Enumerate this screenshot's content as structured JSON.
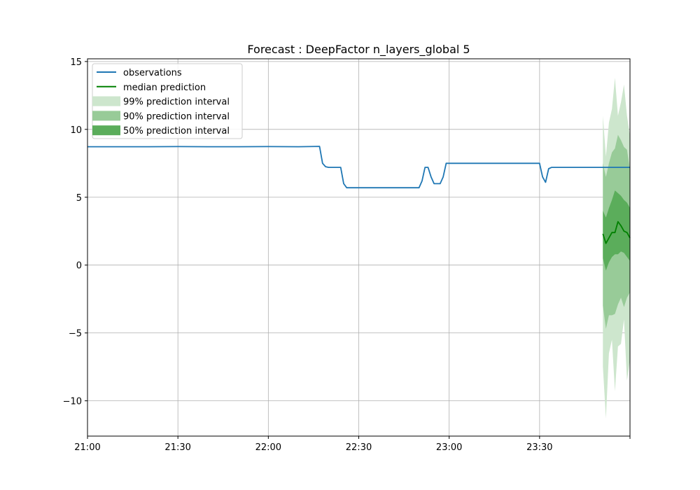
{
  "chart_data": {
    "type": "line",
    "title": "Forecast : DeepFactor n_layers_global 5",
    "xlabel": "",
    "ylabel": "",
    "x_unit": "minutes after 21:00",
    "xlim": [
      0,
      180
    ],
    "ylim": [
      -12.6,
      15.2
    ],
    "x_ticks": [
      {
        "value": 0,
        "label": "21:00"
      },
      {
        "value": 30,
        "label": "21:30"
      },
      {
        "value": 60,
        "label": "22:00"
      },
      {
        "value": 90,
        "label": "22:30"
      },
      {
        "value": 120,
        "label": "23:00"
      },
      {
        "value": 150,
        "label": "23:30"
      },
      {
        "value": 180,
        "label": ""
      }
    ],
    "y_ticks": [
      {
        "value": -10,
        "label": "−10"
      },
      {
        "value": -5,
        "label": "−5"
      },
      {
        "value": 0,
        "label": "0"
      },
      {
        "value": 5,
        "label": "5"
      },
      {
        "value": 10,
        "label": "10"
      },
      {
        "value": 15,
        "label": "15"
      }
    ],
    "grid": true,
    "legend_position": "top-left",
    "legend": [
      {
        "label": "observations",
        "kind": "line",
        "color": "#1f77b4"
      },
      {
        "label": "median prediction",
        "kind": "line",
        "color": "#008000"
      },
      {
        "label": "99% prediction interval",
        "kind": "band",
        "color": "#cde6cd"
      },
      {
        "label": "90% prediction interval",
        "kind": "band",
        "color": "#98cb98"
      },
      {
        "label": "50% prediction interval",
        "kind": "band",
        "color": "#5bad5b"
      }
    ],
    "series": [
      {
        "name": "observations",
        "color": "#1f77b4",
        "x": [
          0,
          10,
          20,
          30,
          40,
          50,
          60,
          70,
          77,
          78,
          79,
          80,
          84,
          85,
          86,
          87,
          90,
          100,
          110,
          111,
          112,
          113,
          114,
          115,
          116,
          117,
          118,
          119,
          120,
          130,
          140,
          150,
          151,
          152,
          153,
          154,
          155,
          160,
          170,
          180
        ],
        "y": [
          8.72,
          8.72,
          8.72,
          8.73,
          8.72,
          8.72,
          8.73,
          8.72,
          8.75,
          7.5,
          7.25,
          7.2,
          7.2,
          6.0,
          5.7,
          5.7,
          5.7,
          5.7,
          5.7,
          6.2,
          7.2,
          7.2,
          6.5,
          6.0,
          6.0,
          6.0,
          6.5,
          7.5,
          7.5,
          7.5,
          7.5,
          7.5,
          6.5,
          6.1,
          7.1,
          7.2,
          7.2,
          7.2,
          7.2,
          7.2
        ]
      },
      {
        "name": "median prediction",
        "color": "#008000",
        "x": [
          171,
          172,
          173,
          174,
          175,
          176,
          177,
          178,
          179,
          180
        ],
        "y": [
          2.3,
          1.6,
          2.0,
          2.4,
          2.4,
          3.2,
          2.9,
          2.5,
          2.4,
          2.0
        ]
      }
    ],
    "bands": [
      {
        "name": "99% prediction interval",
        "color": "#cde6cd",
        "x": [
          171,
          172,
          173,
          174,
          175,
          176,
          177,
          178,
          179,
          180
        ],
        "lower": [
          -7.5,
          -11.3,
          -6.5,
          -5.5,
          -9.3,
          -6.0,
          -5.8,
          -4.0,
          -8.5,
          -7.0
        ],
        "upper": [
          11.0,
          8.0,
          10.5,
          11.5,
          13.8,
          11.0,
          12.0,
          13.3,
          11.0,
          9.5
        ]
      },
      {
        "name": "90% prediction interval",
        "color": "#98cb98",
        "x": [
          171,
          172,
          173,
          174,
          175,
          176,
          177,
          178,
          179,
          180
        ],
        "lower": [
          -3.0,
          -4.7,
          -3.7,
          -3.7,
          -3.6,
          -2.9,
          -2.4,
          -3.1,
          -2.4,
          -2.0
        ],
        "upper": [
          7.5,
          6.5,
          7.5,
          8.3,
          8.6,
          9.6,
          9.2,
          8.7,
          8.5,
          7.0
        ]
      },
      {
        "name": "50% prediction interval",
        "color": "#5bad5b",
        "x": [
          171,
          172,
          173,
          174,
          175,
          176,
          177,
          178,
          179,
          180
        ],
        "lower": [
          0.5,
          -0.4,
          0.2,
          0.6,
          0.8,
          0.8,
          1.0,
          0.9,
          0.6,
          0.3
        ],
        "upper": [
          4.0,
          3.5,
          4.2,
          4.8,
          5.5,
          5.3,
          5.1,
          4.8,
          4.6,
          4.2
        ]
      }
    ]
  }
}
